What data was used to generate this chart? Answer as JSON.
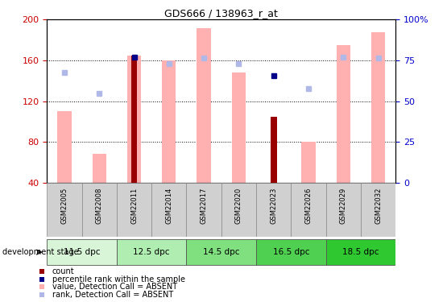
{
  "title": "GDS666 / 138963_r_at",
  "samples": [
    "GSM22005",
    "GSM22008",
    "GSM22011",
    "GSM22014",
    "GSM22017",
    "GSM22020",
    "GSM22023",
    "GSM22026",
    "GSM22029",
    "GSM22032"
  ],
  "ylim_left": [
    40,
    200
  ],
  "ylim_right": [
    0,
    100
  ],
  "yticks_left": [
    40,
    80,
    120,
    160,
    200
  ],
  "yticks_right": [
    0,
    25,
    50,
    75,
    100
  ],
  "pink_bar_values": [
    110,
    68,
    165,
    160,
    192,
    148,
    null,
    80,
    175,
    188
  ],
  "red_bar_values": [
    null,
    null,
    165,
    null,
    null,
    null,
    105,
    null,
    null,
    null
  ],
  "blue_square_left": [
    null,
    null,
    163,
    null,
    null,
    null,
    145,
    null,
    null,
    null
  ],
  "light_blue_square_left": [
    148,
    128,
    null,
    157,
    162,
    157,
    null,
    132,
    163,
    162
  ],
  "dev_stages": [
    {
      "label": "11.5 dpc",
      "cols": [
        0,
        1
      ],
      "color": "#d8f5d8"
    },
    {
      "label": "12.5 dpc",
      "cols": [
        2,
        3
      ],
      "color": "#b0edb0"
    },
    {
      "label": "14.5 dpc",
      "cols": [
        4,
        5
      ],
      "color": "#80e080"
    },
    {
      "label": "16.5 dpc",
      "cols": [
        6,
        7
      ],
      "color": "#50d050"
    },
    {
      "label": "18.5 dpc",
      "cols": [
        8,
        9
      ],
      "color": "#30c830"
    }
  ],
  "pink_color": "#ffb0b0",
  "red_color": "#990000",
  "blue_color": "#000088",
  "lightblue_color": "#b0b8e8",
  "grid_color": "#000000",
  "bar_width": 0.4,
  "left_label_color": "#cc0000",
  "right_label_color": "#0000cc",
  "right_tick_labels": [
    "0",
    "25",
    "50",
    "75",
    "100%"
  ]
}
